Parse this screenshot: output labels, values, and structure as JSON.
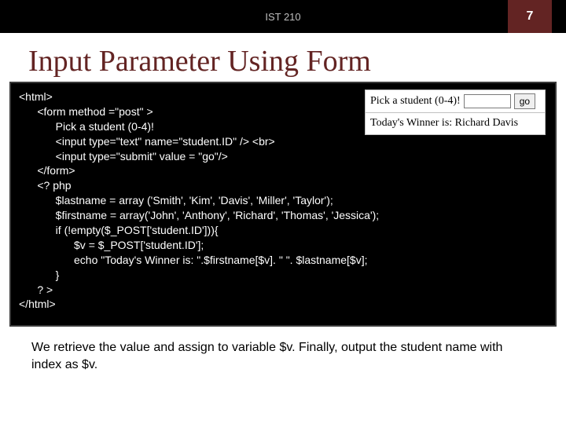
{
  "header": {
    "course": "IST 210",
    "page_number": "7",
    "bg_color": "#000000",
    "accent_color": "#632423"
  },
  "title": "Input Parameter Using Form",
  "title_color": "#632423",
  "code_block": "<html>\n      <form method =\"post\" >\n            Pick a student (0-4)!\n            <input type=\"text\" name=\"student.ID\" /> <br>\n            <input type=\"submit\" value = \"go\"/>\n      </form>\n      <? php\n            $lastname = array ('Smith', 'Kim', 'Davis', 'Miller', 'Taylor');\n            $firstname = array('John', 'Anthony', 'Richard', 'Thomas', 'Jessica');\n            if (!empty($_POST['student.ID'])){\n                  $v = $_POST['student.ID'];\n                  echo \"Today's Winner is: \".$firstname[$v]. \" \". $lastname[$v];\n            }\n      ? >\n</html>",
  "render_preview": {
    "prompt": "Pick a student (0-4)!",
    "input_value": "",
    "button_label": "go",
    "result_text": "Today's Winner is: Richard Davis"
  },
  "caption": "We retrieve the value and assign to variable $v. Finally, output the student name with index as $v."
}
